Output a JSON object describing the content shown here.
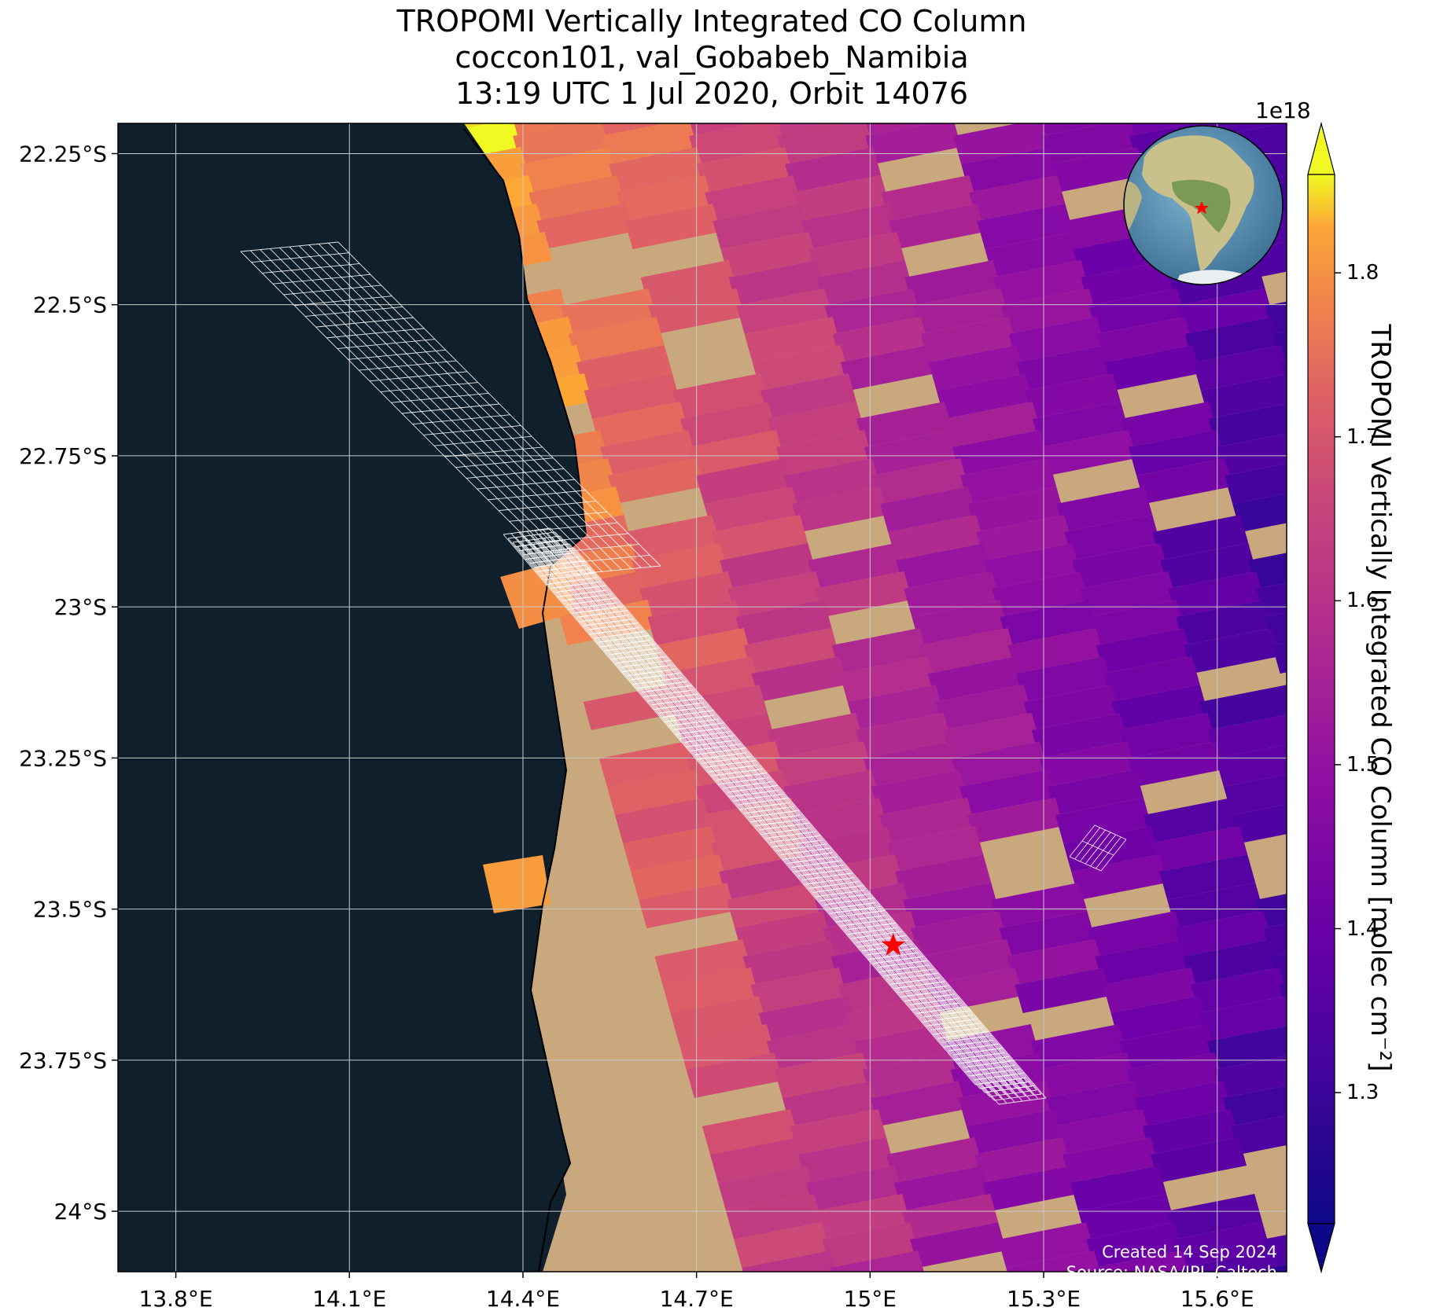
{
  "title": {
    "line1": "TROPOMI Vertically Integrated CO Column",
    "line2": "coccon101, val_Gobabeb_Namibia",
    "line3": "13:19 UTC 1 Jul 2020, Orbit 14076"
  },
  "axes": {
    "lon_ticks": [
      "13.8°E",
      "14.1°E",
      "14.4°E",
      "14.7°E",
      "15°E",
      "15.3°E",
      "15.6°E"
    ],
    "lat_ticks": [
      "22.25°S",
      "22.5°S",
      "22.75°S",
      "23°S",
      "23.25°S",
      "23.5°S",
      "23.75°S",
      "24°S"
    ],
    "lon_range": [
      13.7,
      15.72
    ],
    "lat_range": [
      -24.1,
      -22.2
    ]
  },
  "colorbar": {
    "label": "TROPOMI Vertically Integrated CO Column [molec cm⁻²]",
    "exponent": "1e18",
    "ticks": [
      "1.3",
      "1.4",
      "1.5",
      "1.6",
      "1.7",
      "1.8"
    ],
    "range": [
      1.22,
      1.86
    ],
    "colormap": "plasma",
    "extend": "both"
  },
  "site": {
    "lon": 15.04,
    "lat": -23.56,
    "marker": "red-star",
    "color": "#ff0000"
  },
  "credit": {
    "line1": "Created 14 Sep 2024",
    "line2": "Source: NASA/JPL-Caltech"
  },
  "colors": {
    "ocean": "#0f1f2b",
    "desert": "#c9a87e",
    "grid": "#c8c8c8",
    "footprint": "#ffffff"
  },
  "inset": {
    "icon": "globe-icon",
    "highlight": "southern-africa-star"
  }
}
